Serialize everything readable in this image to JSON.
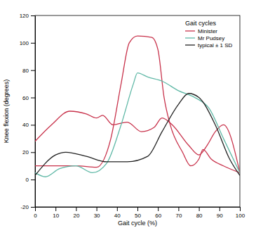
{
  "chart_data": {
    "type": "line",
    "x_label": "Gait cycle (%)",
    "y_label": "Knee flexion (degrees)",
    "legend_title": "Gait cycles",
    "legend": "upper right",
    "grid": false,
    "xlim": [
      0,
      100
    ],
    "ylim": [
      -20,
      120
    ],
    "xticks": [
      0,
      10,
      20,
      30,
      40,
      50,
      60,
      70,
      80,
      90,
      100
    ],
    "yticks": [
      -20,
      0,
      20,
      40,
      60,
      80,
      100,
      120
    ],
    "series": [
      {
        "name": "Minister",
        "color": "#c8324b",
        "x": [
          0,
          10,
          20,
          30,
          37,
          42,
          46,
          50,
          57,
          60,
          63,
          66,
          72,
          76,
          80,
          82,
          86,
          92,
          100
        ],
        "values": [
          10,
          10,
          10,
          9,
          30,
          70,
          100,
          105,
          104,
          95,
          60,
          40,
          20,
          10,
          15,
          22,
          15,
          10,
          5
        ]
      },
      {
        "name": "Minister",
        "color": "#c8324b",
        "x": [
          0,
          8,
          17,
          25,
          30,
          33,
          38,
          45,
          52,
          58,
          62,
          67,
          75,
          80,
          84,
          88,
          92,
          100
        ],
        "values": [
          28,
          40,
          50,
          48,
          45,
          47,
          40,
          42,
          35,
          38,
          45,
          40,
          25,
          18,
          25,
          35,
          40,
          5
        ]
      },
      {
        "name": "Mr Pudsey",
        "color": "#5fb8a6",
        "x": [
          0,
          5,
          12,
          20,
          28,
          35,
          42,
          48,
          50,
          55,
          62,
          70,
          78,
          85,
          92,
          100
        ],
        "values": [
          5,
          2,
          8,
          10,
          5,
          12,
          40,
          70,
          78,
          75,
          72,
          65,
          60,
          52,
          30,
          5
        ]
      },
      {
        "name": "typical ± 1 SD",
        "color": "#222222",
        "x": [
          0,
          10,
          15,
          25,
          35,
          45,
          55,
          62,
          70,
          75,
          80,
          88,
          95,
          100
        ],
        "values": [
          3,
          18,
          20,
          17,
          13,
          13,
          17,
          35,
          55,
          63,
          60,
          40,
          15,
          3
        ]
      }
    ]
  }
}
